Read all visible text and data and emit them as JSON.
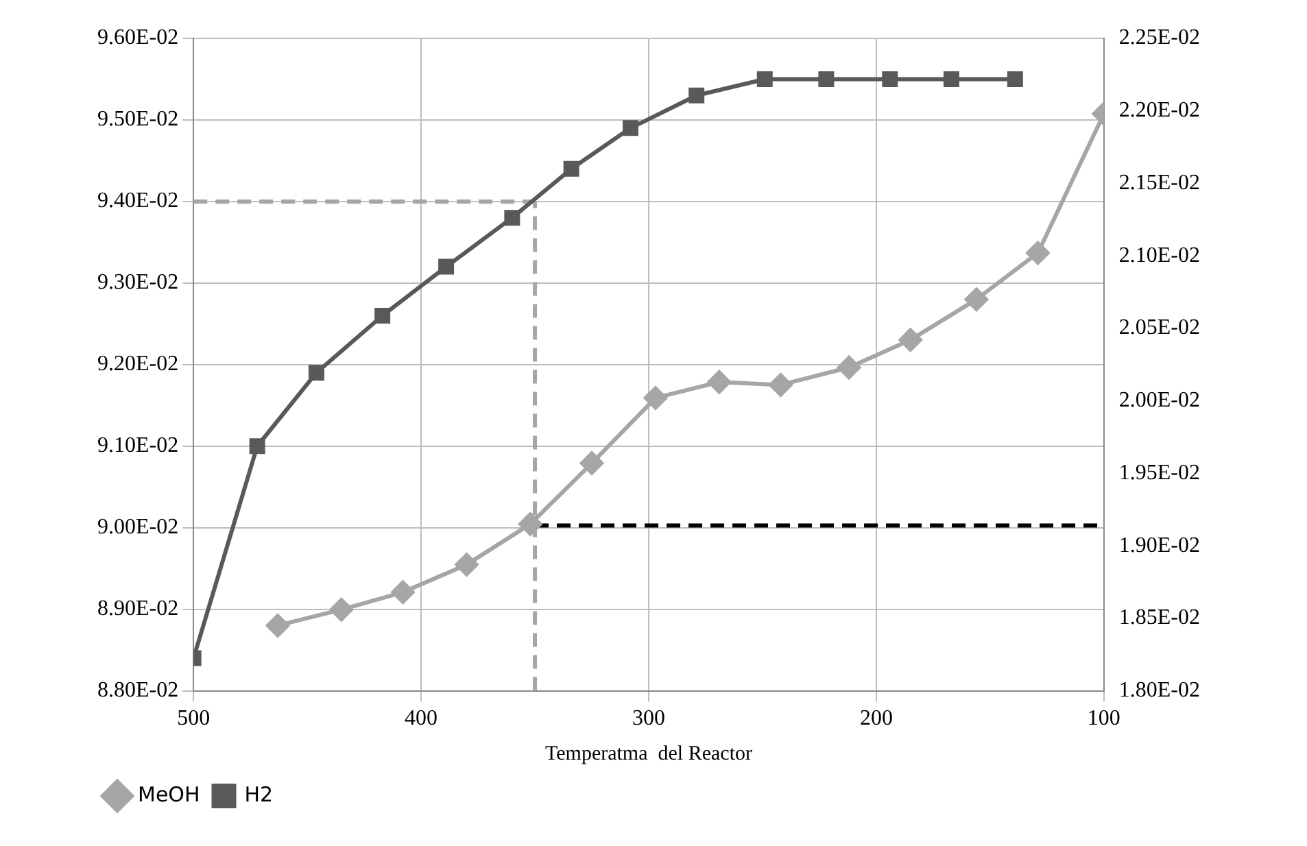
{
  "chart_data": {
    "type": "line",
    "xlabel": "Temperatma  del Reactor",
    "xlim": [
      500,
      100
    ],
    "xticks": [
      500,
      400,
      300,
      200,
      100
    ],
    "ylim": [
      0.088,
      0.096
    ],
    "yticks": [
      {
        "value": 0.088,
        "label": "8.80E-02"
      },
      {
        "value": 0.089,
        "label": "8.90E-02"
      },
      {
        "value": 0.09,
        "label": "9.00E-02"
      },
      {
        "value": 0.091,
        "label": "9.10E-02"
      },
      {
        "value": 0.092,
        "label": "9.20E-02"
      },
      {
        "value": 0.093,
        "label": "9.30E-02"
      },
      {
        "value": 0.094,
        "label": "9.40E-02"
      },
      {
        "value": 0.095,
        "label": "9.50E-02"
      },
      {
        "value": 0.096,
        "label": "9.60E-02"
      }
    ],
    "y2lim": [
      0.018,
      0.0225
    ],
    "y2ticks": [
      {
        "value": 0.018,
        "label": "1.80E-02"
      },
      {
        "value": 0.0185,
        "label": "1.85E-02"
      },
      {
        "value": 0.019,
        "label": "1.90E-02"
      },
      {
        "value": 0.0195,
        "label": "1.95E-02"
      },
      {
        "value": 0.02,
        "label": "2.00E-02"
      },
      {
        "value": 0.0205,
        "label": "2.05E-02"
      },
      {
        "value": 0.021,
        "label": "2.10E-02"
      },
      {
        "value": 0.0215,
        "label": "2.15E-02"
      },
      {
        "value": 0.022,
        "label": "2.20E-02"
      },
      {
        "value": 0.0225,
        "label": "2.25E-02"
      }
    ],
    "grid": true,
    "legend": "bottom left",
    "line_style": "solid",
    "series": [
      {
        "name": "MeOH",
        "color": "#a6a6a6",
        "axis": "y2",
        "marker": "diamond",
        "x": [
          463,
          435,
          408,
          380,
          352,
          325,
          297,
          269,
          242,
          212,
          185,
          156,
          129,
          100
        ],
        "values": [
          0.01845,
          0.01856,
          0.01868,
          0.01887,
          0.01915,
          0.01957,
          0.02002,
          0.02013,
          0.02011,
          0.02023,
          0.02042,
          0.0207,
          0.02102,
          0.02198
        ]
      },
      {
        "name": "H2",
        "color": "#595959",
        "marker": "square",
        "x": [
          500,
          472,
          446,
          417,
          389,
          360,
          334,
          308,
          279,
          249,
          222,
          194,
          167,
          139
        ],
        "values": [
          0.0884,
          0.091,
          0.0919,
          0.0926,
          0.0932,
          0.0938,
          0.0944,
          0.0949,
          0.0953,
          0.0955,
          0.0955,
          0.0955,
          0.0955,
          0.0955
        ]
      },
      {
        "color": "#a6a6a6",
        "marker": "none",
        "line_style": "dashed",
        "x": [
          500,
          350
        ],
        "values": [
          0.094,
          0.094
        ]
      },
      {
        "color": "#a6a6a6",
        "marker": "none",
        "line_style": "dashed",
        "x": [
          350,
          350
        ],
        "values": [
          0.088,
          0.094
        ]
      },
      {
        "color": "#000000",
        "axis": "y2",
        "marker": "none",
        "line_style": "dashed",
        "x": [
          350,
          100
        ],
        "values": [
          0.01914,
          0.01914
        ]
      }
    ]
  }
}
